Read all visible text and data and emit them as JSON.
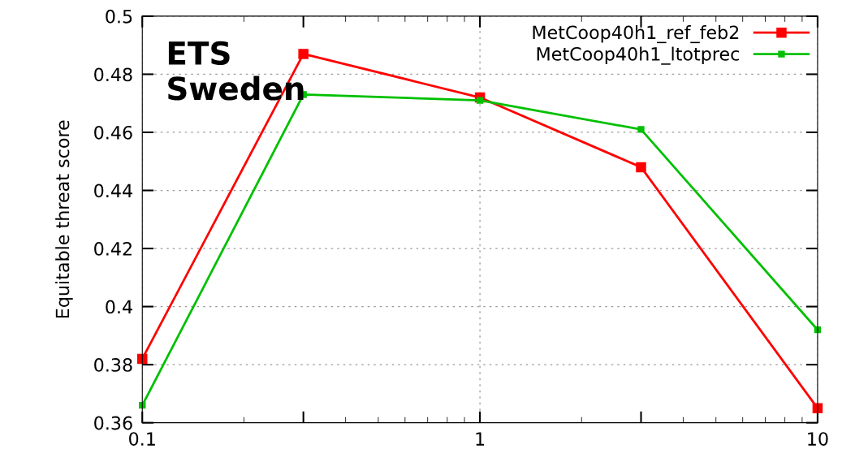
{
  "chart_data": {
    "type": "line",
    "ylabel": "Equitable threat score",
    "annotations": [
      "ETS\nSweden"
    ],
    "x": [
      0.1,
      0.3,
      1,
      3,
      10
    ],
    "series": [
      {
        "name": "MetCoop40h1_ref_feb2",
        "color": "#ff0000",
        "values": [
          0.382,
          0.487,
          0.472,
          0.448,
          0.365
        ]
      },
      {
        "name": "MetCoop40h1_ltotprec",
        "color": "#00c000",
        "values": [
          0.366,
          0.473,
          0.471,
          0.461,
          0.392
        ]
      }
    ],
    "log": "x",
    "xlim": [
      0.1,
      10
    ],
    "xticks": [
      0.1,
      {
        "value": 0.3,
        "label": null
      },
      1,
      {
        "value": 3,
        "label": null
      },
      10
    ],
    "ylim": [
      0.36,
      0.5
    ],
    "yticks": [
      0.36,
      0.38,
      0.4,
      0.42,
      0.44,
      0.46,
      0.48,
      0.5
    ],
    "grid": true,
    "legend": "top right",
    "marker": "square",
    "line_style": "solid"
  }
}
